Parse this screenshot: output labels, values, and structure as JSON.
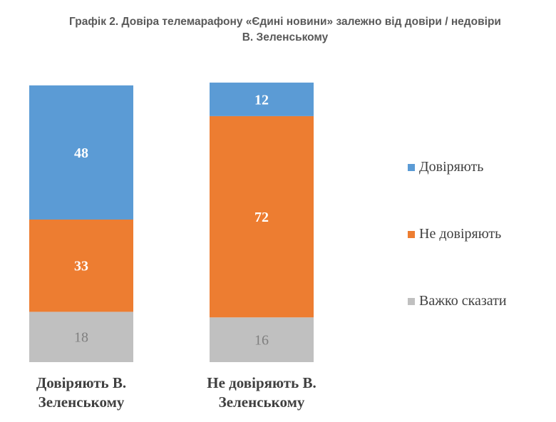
{
  "chart_data": {
    "type": "bar",
    "stacked": true,
    "title_lines": [
      "Графік 2. Довіра телемарафону «Єдині новини» залежно від довіри / недовіри",
      "В. Зеленському"
    ],
    "categories": [
      [
        "Довіряють В.",
        "Зеленському"
      ],
      [
        "Не довіряють В.",
        "Зеленському"
      ]
    ],
    "series": [
      {
        "name": "Довіряють",
        "values": [
          48,
          12
        ],
        "color": "#5b9bd5",
        "label_color": "#ffffff",
        "label_weight": "bold"
      },
      {
        "name": "Не довіряють",
        "values": [
          33,
          72
        ],
        "color": "#ed7d31",
        "label_color": "#ffffff",
        "label_weight": "bold"
      },
      {
        "name": "Важко сказати",
        "values": [
          18,
          16
        ],
        "color": "#c0c0c0",
        "label_color": "#7f7f7f",
        "label_weight": "normal"
      }
    ],
    "ylim": [
      0,
      100
    ],
    "legend_position": "right",
    "grid": false,
    "xlabel": "",
    "ylabel": ""
  }
}
